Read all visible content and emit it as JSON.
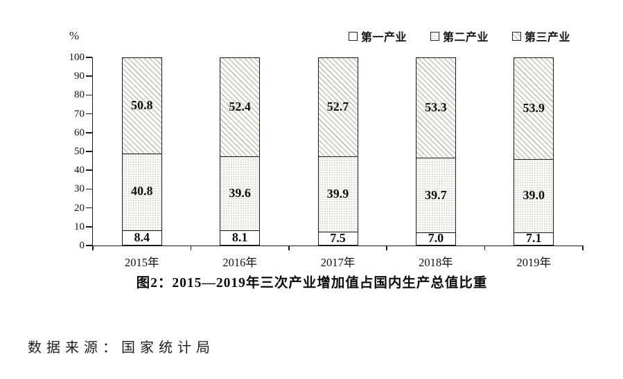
{
  "chart_data": {
    "type": "bar",
    "stacked": true,
    "title": "图2：2015—2019年三次产业增加值占国内生产总值比重",
    "unit_label": "%",
    "categories": [
      "2015年",
      "2016年",
      "2017年",
      "2018年",
      "2019年"
    ],
    "series": [
      {
        "name": "第一产业",
        "pattern": "plain",
        "values": [
          8.4,
          8.1,
          7.5,
          7.0,
          7.1
        ]
      },
      {
        "name": "第二产业",
        "pattern": "dots",
        "values": [
          40.8,
          39.6,
          39.9,
          39.7,
          39.0
        ]
      },
      {
        "name": "第三产业",
        "pattern": "diagonal-hatch",
        "values": [
          50.8,
          52.4,
          52.7,
          53.3,
          53.9
        ]
      }
    ],
    "ylim": [
      0,
      100
    ],
    "yticks": [
      0,
      10,
      20,
      30,
      40,
      50,
      60,
      70,
      80,
      90,
      100
    ],
    "legend_position": "top-right",
    "grid": false,
    "colors": {
      "axis": "#1a1a1a",
      "text": "#111111",
      "hatch_line": "#b5b5ac"
    }
  },
  "source_note": "数据来源：国家统计局"
}
